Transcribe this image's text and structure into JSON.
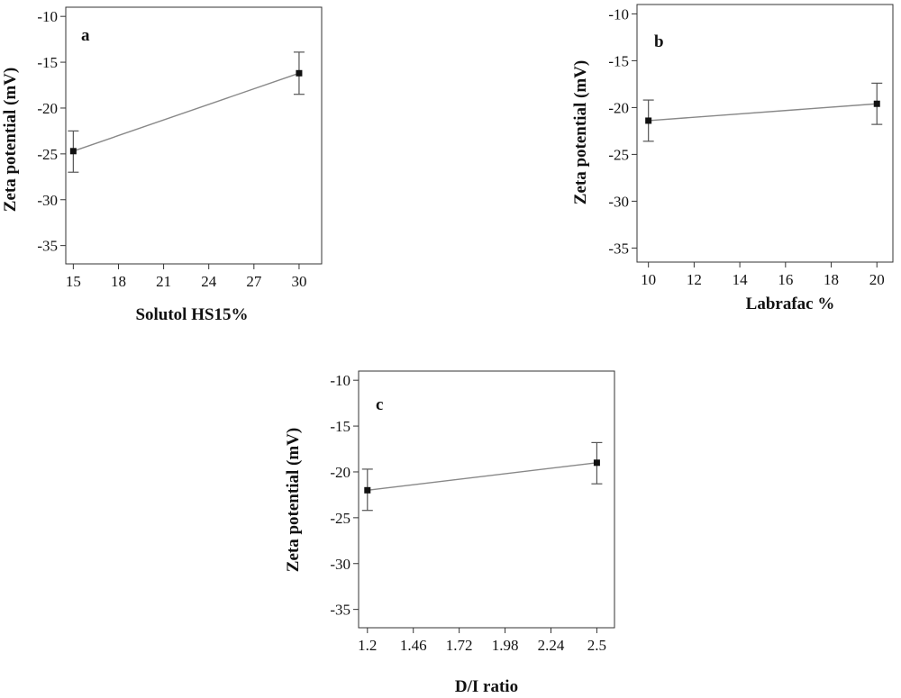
{
  "colors": {
    "frame": "#333333",
    "line": "#888888",
    "marker": "#111111",
    "errorbar": "#555555",
    "background": "#ffffff"
  },
  "chart_data": [
    {
      "type": "line",
      "panel_label": "a",
      "xlabel": "Solutol HS15%",
      "ylabel": "Zeta potential (mV)",
      "xlim": [
        14.5,
        31.5
      ],
      "ylim": [
        -37,
        -9
      ],
      "xticks": [
        15,
        18,
        21,
        24,
        27,
        30
      ],
      "xtick_labels": [
        "15",
        "18",
        "21",
        "24",
        "27",
        "30"
      ],
      "yticks": [
        -10,
        -15,
        -20,
        -25,
        -30,
        -35
      ],
      "ytick_labels": [
        "-10",
        "-15",
        "-20",
        "-25",
        "-30",
        "-35"
      ],
      "grid": false,
      "x": [
        15,
        30
      ],
      "y": [
        -24.7,
        -16.2
      ],
      "error_low": [
        -27.0,
        -18.5
      ],
      "error_high": [
        -22.5,
        -13.9
      ]
    },
    {
      "type": "line",
      "panel_label": "b",
      "xlabel": "Labrafac %",
      "ylabel": "Zeta potential (mV)",
      "xlim": [
        9.5,
        20.7
      ],
      "ylim": [
        -36.5,
        -9
      ],
      "xticks": [
        10,
        12,
        14,
        16,
        18,
        20
      ],
      "xtick_labels": [
        "10",
        "12",
        "14",
        "16",
        "18",
        "20"
      ],
      "yticks": [
        -10,
        -15,
        -20,
        -25,
        -30,
        -35
      ],
      "ytick_labels": [
        "-10",
        "-15",
        "-20",
        "-25",
        "-30",
        "-35"
      ],
      "grid": false,
      "x": [
        10,
        20
      ],
      "y": [
        -21.4,
        -19.6
      ],
      "error_low": [
        -23.6,
        -21.8
      ],
      "error_high": [
        -19.2,
        -17.4
      ]
    },
    {
      "type": "line",
      "panel_label": "c",
      "xlabel": "D/I ratio",
      "ylabel": "Zeta potential (mV)",
      "xlim": [
        1.15,
        2.6
      ],
      "ylim": [
        -37,
        -9
      ],
      "xticks": [
        1.2,
        1.46,
        1.72,
        1.98,
        2.24,
        2.5
      ],
      "xtick_labels": [
        "1.2",
        "1.46",
        "1.72",
        "1.98",
        "2.24",
        "2.5"
      ],
      "yticks": [
        -10,
        -15,
        -20,
        -25,
        -30,
        -35
      ],
      "ytick_labels": [
        "-10",
        "-15",
        "-20",
        "-25",
        "-30",
        "-35"
      ],
      "grid": false,
      "x": [
        1.2,
        2.5
      ],
      "y": [
        -22.0,
        -19.0
      ],
      "error_low": [
        -24.2,
        -21.3
      ],
      "error_high": [
        -19.7,
        -16.8
      ]
    }
  ]
}
